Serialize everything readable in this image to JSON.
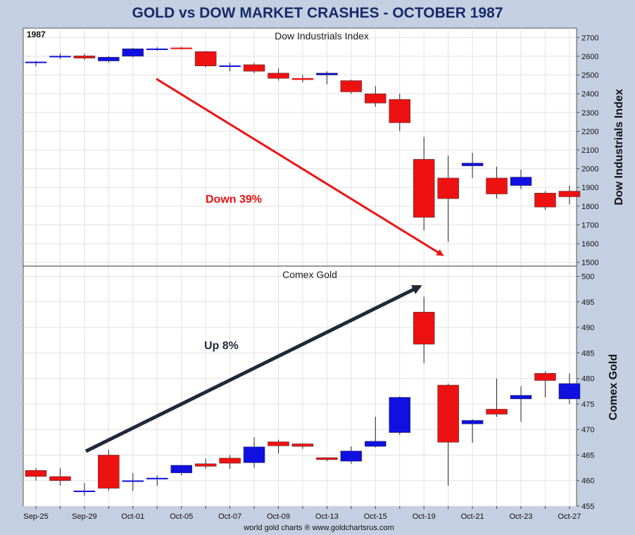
{
  "title": "GOLD vs DOW MARKET CRASHES - OCTOBER 1987",
  "year_label": "1987",
  "footer": "world gold charts ® www.goldchartsrus.com",
  "x_tick_labels": [
    "Sep-25",
    "Sep-29",
    "Oct-01",
    "Oct-05",
    "Oct-07",
    "Oct-09",
    "Oct-13",
    "Oct-15",
    "Oct-19",
    "Oct-21",
    "Oct-23",
    "Oct-27"
  ],
  "colors": {
    "up": "#1010e0",
    "down": "#ee1111",
    "grid": "#e2e2e2",
    "frame_bg": "#c4cfe2",
    "title": "#1a2a6a",
    "dow_arrow": "#ee1111",
    "gold_arrow": "#1e2a3a"
  },
  "chart_data": [
    {
      "type": "candlestick",
      "title": "Dow Industrials Index",
      "ylabel": "Dow Industrials Index",
      "ylim": [
        1480,
        2750
      ],
      "yticks": [
        1500,
        1600,
        1700,
        1800,
        1900,
        2000,
        2100,
        2200,
        2300,
        2400,
        2500,
        2600,
        2700
      ],
      "annotation": "Down 39%",
      "candles": [
        {
          "date": "Sep-25",
          "open": 2565,
          "high": 2575,
          "low": 2545,
          "close": 2570
        },
        {
          "date": "Sep-28",
          "open": 2601,
          "high": 2615,
          "low": 2585,
          "close": 2601
        },
        {
          "date": "Sep-29",
          "open": 2602,
          "high": 2615,
          "low": 2580,
          "close": 2590
        },
        {
          "date": "Sep-30",
          "open": 2575,
          "high": 2600,
          "low": 2565,
          "close": 2595
        },
        {
          "date": "Oct-01",
          "open": 2600,
          "high": 2645,
          "low": 2595,
          "close": 2640
        },
        {
          "date": "Oct-02",
          "open": 2640,
          "high": 2648,
          "low": 2630,
          "close": 2640
        },
        {
          "date": "Oct-05",
          "open": 2645,
          "high": 2650,
          "low": 2635,
          "close": 2640
        },
        {
          "date": "Oct-06",
          "open": 2625,
          "high": 2628,
          "low": 2540,
          "close": 2548
        },
        {
          "date": "Oct-07",
          "open": 2550,
          "high": 2565,
          "low": 2520,
          "close": 2550
        },
        {
          "date": "Oct-08",
          "open": 2555,
          "high": 2565,
          "low": 2510,
          "close": 2520
        },
        {
          "date": "Oct-09",
          "open": 2510,
          "high": 2535,
          "low": 2470,
          "close": 2482
        },
        {
          "date": "Oct-12",
          "open": 2482,
          "high": 2500,
          "low": 2460,
          "close": 2475
        },
        {
          "date": "Oct-13",
          "open": 2500,
          "high": 2520,
          "low": 2450,
          "close": 2510
        },
        {
          "date": "Oct-14",
          "open": 2470,
          "high": 2475,
          "low": 2400,
          "close": 2410
        },
        {
          "date": "Oct-15",
          "open": 2400,
          "high": 2440,
          "low": 2330,
          "close": 2350
        },
        {
          "date": "Oct-16",
          "open": 2370,
          "high": 2400,
          "low": 2200,
          "close": 2245
        },
        {
          "date": "Oct-19",
          "open": 2050,
          "high": 2170,
          "low": 1670,
          "close": 1740
        },
        {
          "date": "Oct-20",
          "open": 1950,
          "high": 2070,
          "low": 1610,
          "close": 1840
        },
        {
          "date": "Oct-21",
          "open": 2015,
          "high": 2085,
          "low": 1950,
          "close": 2030
        },
        {
          "date": "Oct-22",
          "open": 1950,
          "high": 2010,
          "low": 1840,
          "close": 1865
        },
        {
          "date": "Oct-23",
          "open": 1910,
          "high": 1995,
          "low": 1890,
          "close": 1955
        },
        {
          "date": "Oct-26",
          "open": 1870,
          "high": 1880,
          "low": 1780,
          "close": 1795
        },
        {
          "date": "Oct-27",
          "open": 1880,
          "high": 1910,
          "low": 1810,
          "close": 1850
        }
      ]
    },
    {
      "type": "candlestick",
      "title": "Comex Gold",
      "ylabel": "Comex Gold",
      "ylim": [
        455,
        502
      ],
      "yticks": [
        455,
        460,
        465,
        470,
        475,
        480,
        485,
        490,
        495,
        500
      ],
      "annotation": "Up 8%",
      "candles": [
        {
          "date": "Sep-25",
          "open": 462,
          "high": 462.5,
          "low": 460,
          "close": 460.8
        },
        {
          "date": "Sep-28",
          "open": 460.8,
          "high": 462.5,
          "low": 459,
          "close": 460
        },
        {
          "date": "Sep-29",
          "open": 458,
          "high": 459.5,
          "low": 457,
          "close": 458
        },
        {
          "date": "Sep-30",
          "open": 465,
          "high": 466,
          "low": 458,
          "close": 458.5
        },
        {
          "date": "Oct-01",
          "open": 460,
          "high": 461.5,
          "low": 458,
          "close": 460
        },
        {
          "date": "Oct-02",
          "open": 460.5,
          "high": 461,
          "low": 459,
          "close": 460.5
        },
        {
          "date": "Oct-05",
          "open": 461.5,
          "high": 463,
          "low": 461,
          "close": 463
        },
        {
          "date": "Oct-06",
          "open": 463.3,
          "high": 464.3,
          "low": 462.3,
          "close": 462.8
        },
        {
          "date": "Oct-07",
          "open": 464.4,
          "high": 465,
          "low": 462.3,
          "close": 463.4
        },
        {
          "date": "Oct-08",
          "open": 463.5,
          "high": 468.5,
          "low": 462.5,
          "close": 466.6
        },
        {
          "date": "Oct-09",
          "open": 467.6,
          "high": 468,
          "low": 465.3,
          "close": 466.8
        },
        {
          "date": "Oct-12",
          "open": 467.2,
          "high": 467.3,
          "low": 466.2,
          "close": 466.7
        },
        {
          "date": "Oct-13",
          "open": 464.5,
          "high": 464.5,
          "low": 463.8,
          "close": 464.1
        },
        {
          "date": "Oct-14",
          "open": 463.8,
          "high": 466.7,
          "low": 463.3,
          "close": 465.8
        },
        {
          "date": "Oct-15",
          "open": 466.7,
          "high": 472.5,
          "low": 466.5,
          "close": 467.7
        },
        {
          "date": "Oct-16",
          "open": 469.4,
          "high": 476.5,
          "low": 469,
          "close": 476.3
        },
        {
          "date": "Oct-19",
          "open": 493,
          "high": 496,
          "low": 483,
          "close": 486.7
        },
        {
          "date": "Oct-20",
          "open": 478.7,
          "high": 479,
          "low": 459,
          "close": 467.5
        },
        {
          "date": "Oct-21",
          "open": 471.1,
          "high": 472,
          "low": 467.4,
          "close": 471.8
        },
        {
          "date": "Oct-22",
          "open": 474,
          "high": 480,
          "low": 472.5,
          "close": 473
        },
        {
          "date": "Oct-23",
          "open": 476,
          "high": 478.5,
          "low": 471.5,
          "close": 476.7
        },
        {
          "date": "Oct-26",
          "open": 481,
          "high": 481.4,
          "low": 476.3,
          "close": 479.6
        },
        {
          "date": "Oct-27",
          "open": 476,
          "high": 481,
          "low": 475,
          "close": 479
        }
      ]
    }
  ]
}
